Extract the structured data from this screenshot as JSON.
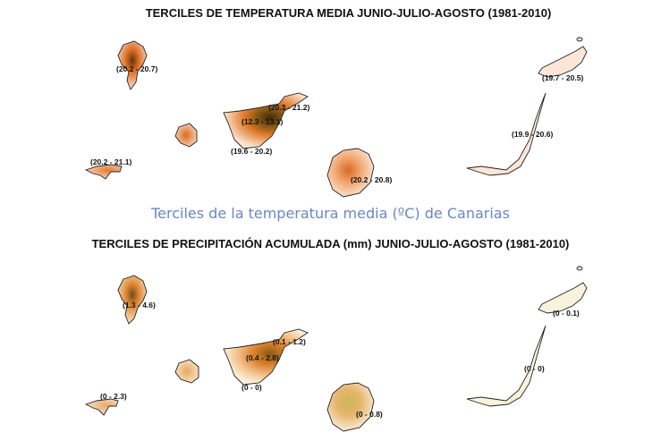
{
  "title_temperature": "TERCILES DE TEMPERATURA MEDIA JUNIO-JULIO-AGOSTO (1981-2010)",
  "caption": "Terciles de la temperatura media (ºC) de Canarias",
  "title_precipitation": "TERCILES DE PRECIPITACIÓN ACUMULADA (mm) JUNIO-JULIO-AGOSTO (1981-2010)",
  "temperature": {
    "la_palma": "(20.2 - 20.7)",
    "el_hierro": "(20.2 - 21.1)",
    "tenerife_ne": "(20.3 - 21.2)",
    "tenerife_peak": "(12.3 - 13.1)",
    "tenerife_south": "(19.6 - 20.2)",
    "gran_canaria": "(20.2 - 20.8)",
    "lanzarote": "(19.7 - 20.5)",
    "fuerteventura": "(19.9 - 20.6)"
  },
  "precipitation": {
    "la_palma": "(1.3 - 4.6)",
    "el_hierro": "(0 - 2.3)",
    "tenerife_ne": "(0.1 - 1.2)",
    "tenerife_peak": "(0.4 - 2.8)",
    "tenerife_south": "(0 - 0)",
    "gran_canaria": "(0 - 0.8)",
    "lanzarote": "(0 - 0.1)",
    "fuerteventura": "(0 - 0)"
  },
  "colors": {
    "temp_high": "#fbe9dc",
    "temp_mid": "#e8823a",
    "temp_low": "#5a3a10",
    "precip_low": "#f6f1d8",
    "precip_mid": "#e0913f",
    "precip_high": "#7a4a14",
    "caption": "#6b86c4"
  }
}
